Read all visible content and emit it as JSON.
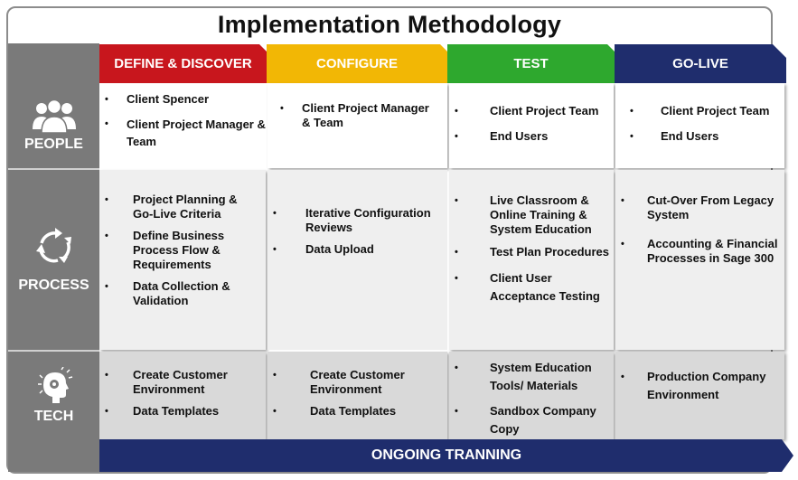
{
  "title": "Implementation Methodology",
  "colors": {
    "define": "#c8161d",
    "configure": "#f2b705",
    "test": "#2ea82e",
    "golive": "#1f2d6d",
    "sidebar": "#7a7a7a",
    "banner": "#1f2d6d"
  },
  "phases": [
    {
      "label": "DEFINE & DISCOVER"
    },
    {
      "label": "CONFIGURE"
    },
    {
      "label": "TEST"
    },
    {
      "label": "GO-LIVE"
    }
  ],
  "rows": [
    {
      "label": "PEOPLE",
      "icon": "people-icon"
    },
    {
      "label": "PROCESS",
      "icon": "cycle-arrows-icon"
    },
    {
      "label": "TECH",
      "icon": "tech-head-icon"
    }
  ],
  "cells": {
    "people": [
      [
        "Client Spencer",
        "Client  Project Manager & Team"
      ],
      [
        "Client  Project Manager & Team"
      ],
      [
        "Client  Project Team",
        "End Users"
      ],
      [
        "Client  Project Team",
        "End Users"
      ]
    ],
    "process": [
      [
        "Project Planning & Go-Live Criteria",
        "Define Business Process Flow & Requirements",
        "Data Collection & Validation"
      ],
      [
        "Iterative Configuration Reviews",
        "Data Upload"
      ],
      [
        "Live Classroom & Online Training & System Education",
        "Test Plan Procedures",
        "Client User Acceptance Testing"
      ],
      [
        "Cut-Over From Legacy System",
        "Accounting & Financial Processes in Sage 300"
      ]
    ],
    "tech": [
      [
        "Create Customer Environment",
        "Data Templates"
      ],
      [
        "Create Customer Environment",
        "Data Templates"
      ],
      [
        "System Education Tools/ Materials",
        "Sandbox Company Copy"
      ],
      [
        "Production Company Environment"
      ]
    ]
  },
  "banner": "ONGOING TRANNING"
}
